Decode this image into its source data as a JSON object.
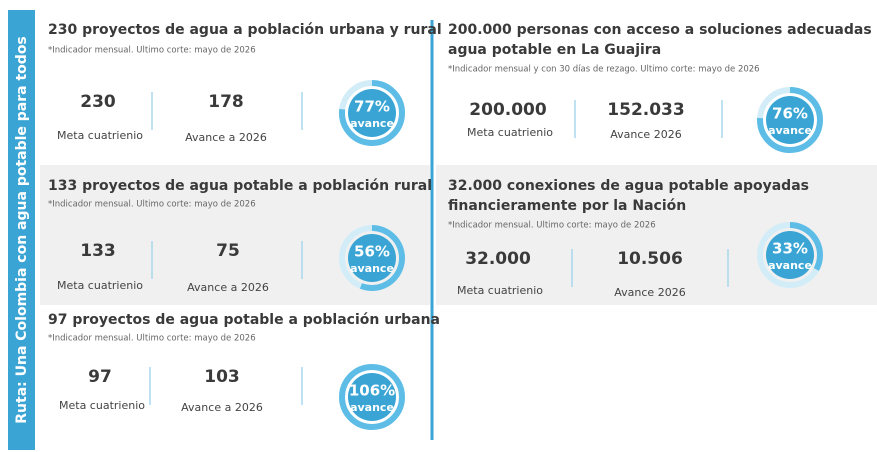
{
  "sidebar": "Ruta: Una Colombia con agua potable para todos",
  "cards": [
    {
      "title": [
        "230 proyectos de agua a población urbana y rural"
      ],
      "note": "*Indicador mensual. Ultimo corte: mayo de 2026",
      "meta_value": "230",
      "meta_label": "Meta cuatrienio",
      "avance_value": "178",
      "avance_label": "Avance a 2026",
      "percent": 77,
      "percent_label": "77%",
      "ring_label": "avance"
    },
    {
      "title": [
        "133 proyectos de agua potable a población rural"
      ],
      "note": "*Indicador mensual. Ultimo corte: mayo de 2026",
      "meta_value": "133",
      "meta_label": "Meta cuatrienio",
      "avance_value": "75",
      "avance_label": "Avance a 2026",
      "percent": 56,
      "percent_label": "56%",
      "ring_label": "avance"
    },
    {
      "title": [
        "97 proyectos de agua potable a población urbana"
      ],
      "note": "*Indicador mensual. Ultimo corte: mayo de 2026",
      "meta_value": "97",
      "meta_label": "Meta cuatrienio",
      "avance_value": "103",
      "avance_label": "Avance a 2026",
      "percent": 106,
      "percent_label": "106%",
      "ring_label": "avance"
    },
    {
      "title": [
        "200.000 personas con acceso a soluciones adecuadas de",
        "agua potable en La Guajira"
      ],
      "note": "*Indicador mensual y con 30 días de rezago. Ultimo corte: mayo de 2026",
      "meta_value": "200.000",
      "meta_label": "Meta cuatrienio",
      "avance_value": "152.033",
      "avance_label": "Avance 2026",
      "percent": 76,
      "percent_label": "76%",
      "ring_label": "avance"
    },
    {
      "title": [
        "32.000 conexiones de agua potable apoyadas",
        "financieramente por la Nación"
      ],
      "note": "*Indicador mensual. Ultimo corte: mayo de 2026",
      "meta_value": "32.000",
      "meta_label": "Meta cuatrienio",
      "avance_value": "10.506",
      "avance_label": "Avance 2026",
      "percent": 33,
      "percent_label": "33%",
      "ring_label": "avance"
    }
  ]
}
